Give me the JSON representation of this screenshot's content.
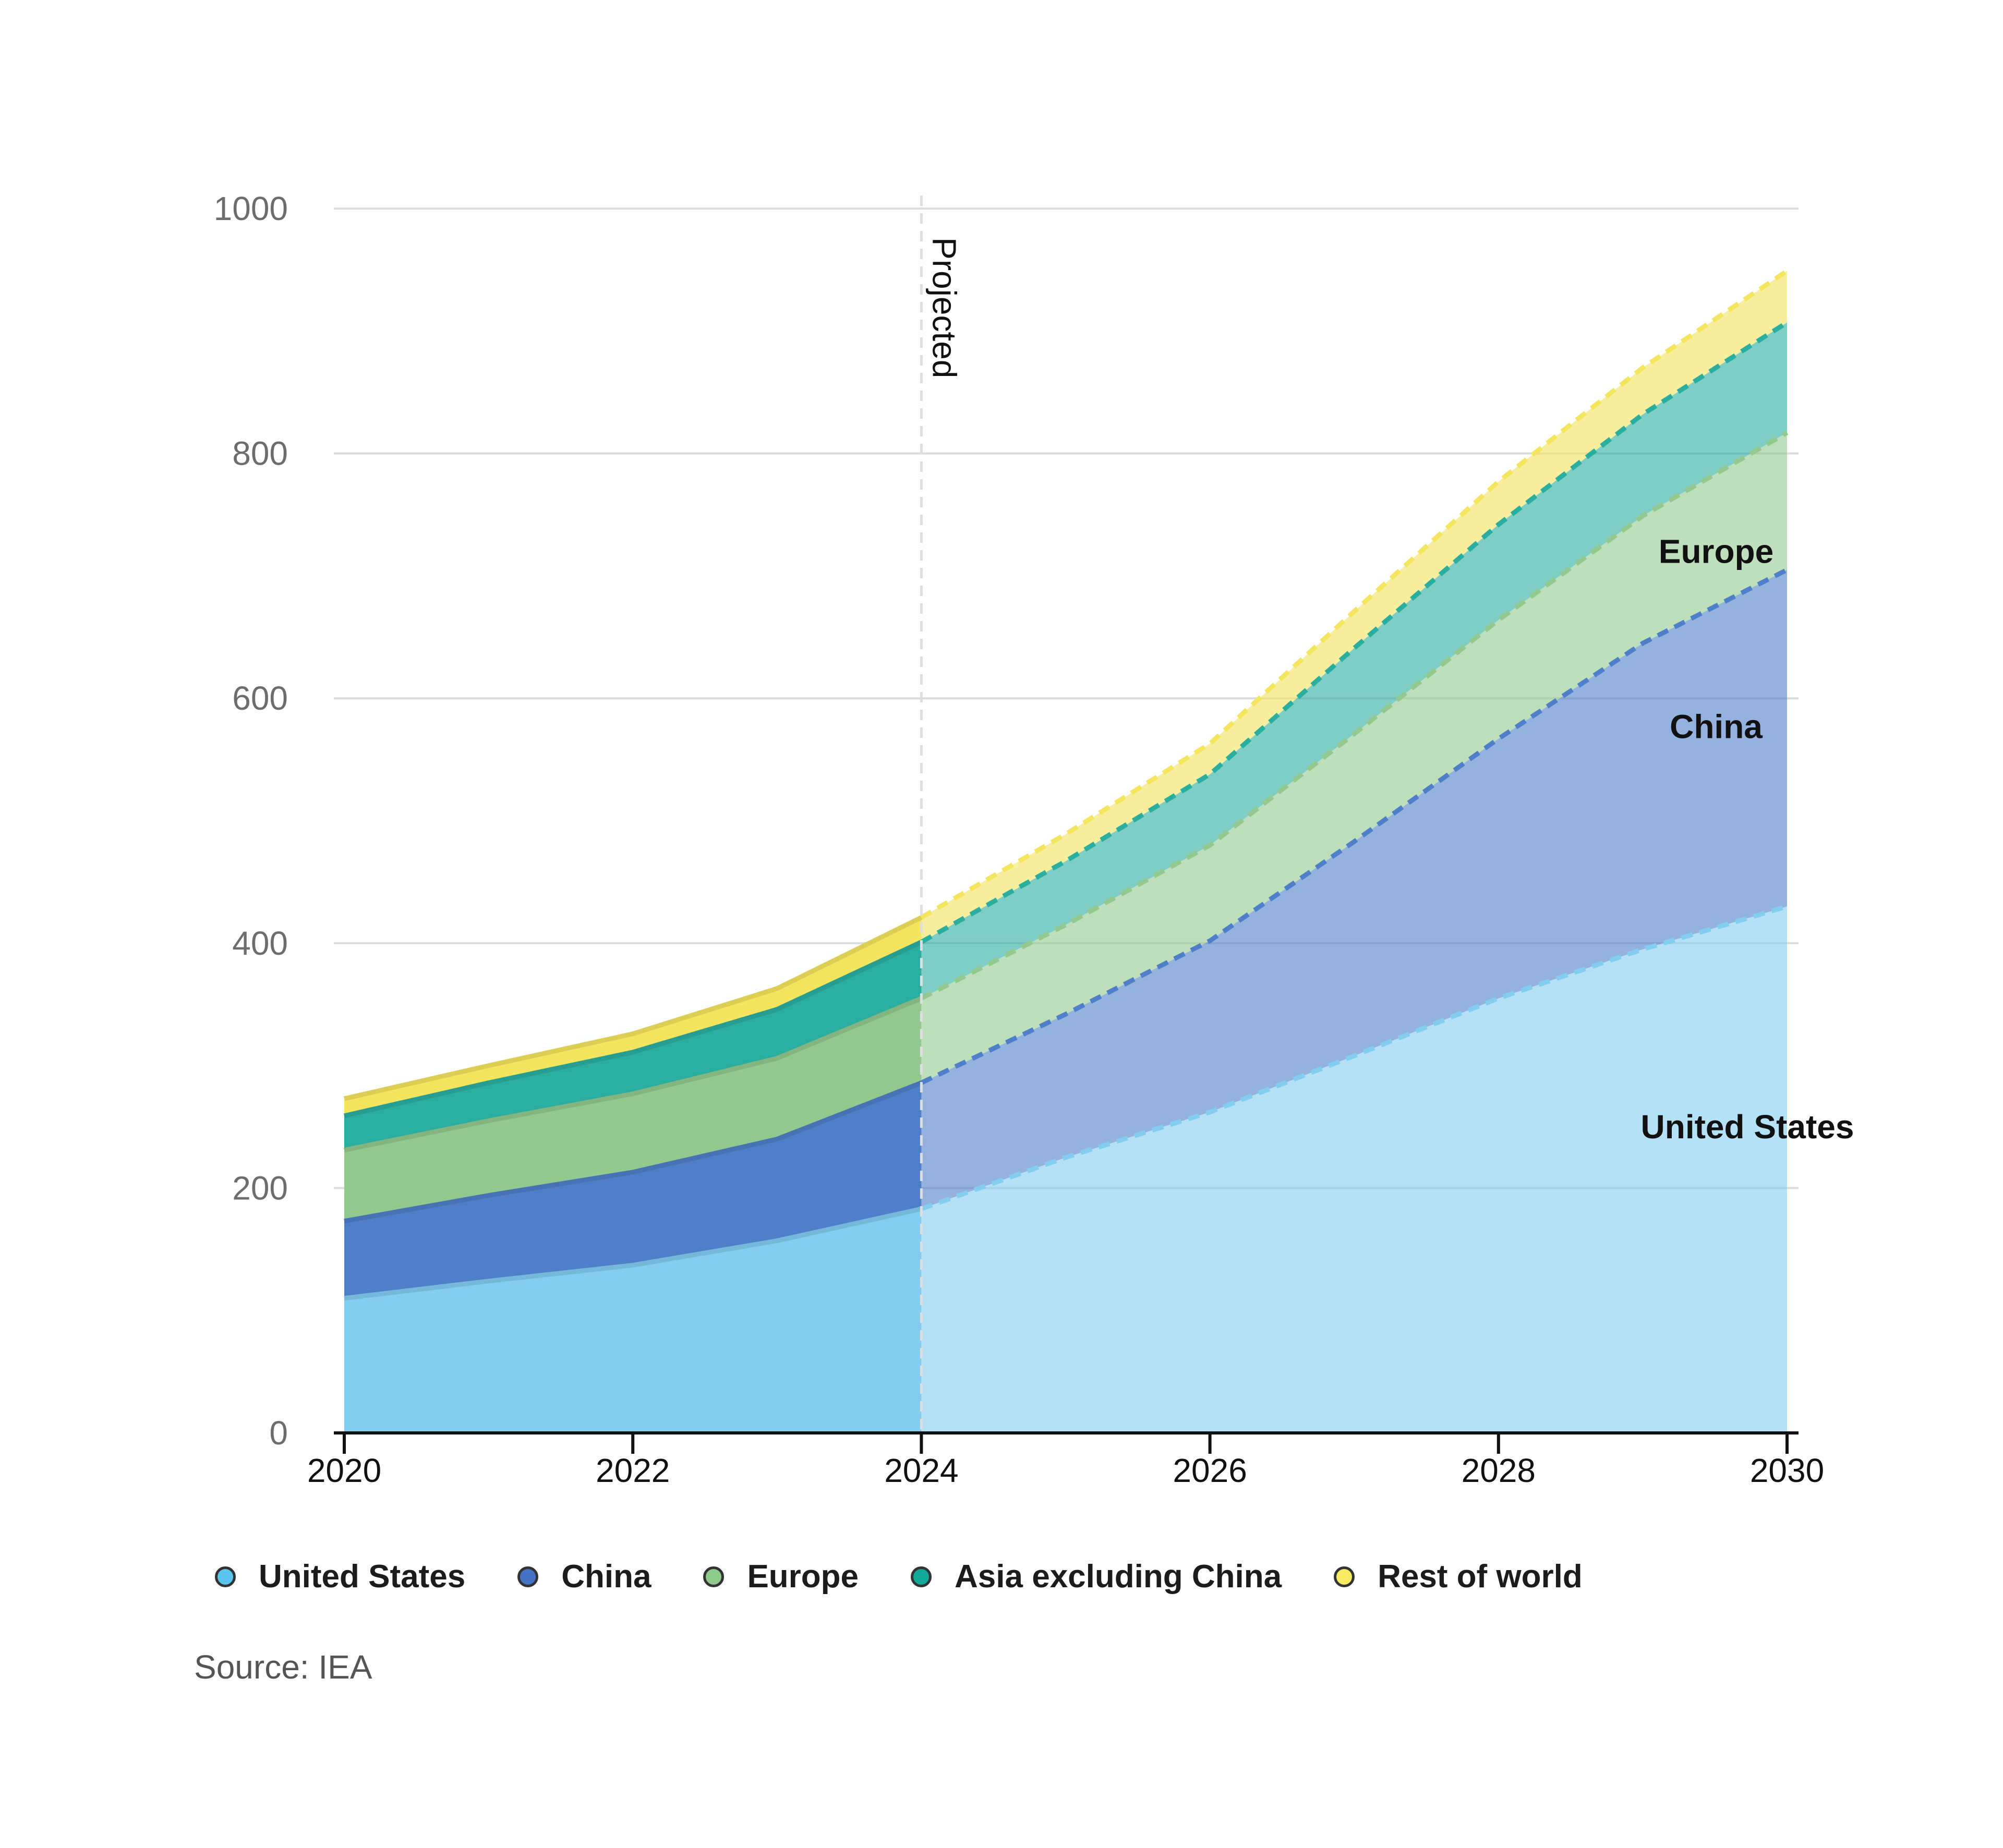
{
  "chart_data": {
    "type": "area",
    "stacked": true,
    "x": [
      2020,
      2021,
      2022,
      2023,
      2024,
      2025,
      2026,
      2027,
      2028,
      2029,
      2030
    ],
    "projected_from": 2024,
    "projected_label": "Projected",
    "series": [
      {
        "name": "United States",
        "color": "#82cdf0",
        "values": [
          110,
          124,
          137,
          157,
          183,
          225,
          262,
          308,
          355,
          395,
          430
        ]
      },
      {
        "name": "China",
        "color": "#4f7fc8",
        "values": [
          63,
          70,
          76,
          83,
          103,
          117,
          140,
          175,
          212,
          250,
          275
        ]
      },
      {
        "name": "Europe",
        "color": "#93c98e",
        "values": [
          58,
          61,
          64,
          66,
          69,
          73,
          78,
          88,
          97,
          104,
          112
        ]
      },
      {
        "name": "Asia excluding China",
        "color": "#2aaea0",
        "values": [
          28,
          31,
          34,
          40,
          46,
          52,
          58,
          70,
          78,
          83,
          90
        ]
      },
      {
        "name": "Rest of world",
        "color": "#f4e55e",
        "values": [
          14,
          14,
          15,
          17,
          20,
          22,
          25,
          30,
          35,
          38,
          42
        ]
      }
    ],
    "inline_labels": [
      "Europe",
      "China",
      "United States"
    ],
    "xticks": [
      2020,
      2022,
      2024,
      2026,
      2028,
      2030
    ],
    "yticks": [
      0,
      200,
      400,
      600,
      800,
      1000
    ],
    "ylim": [
      0,
      1000
    ],
    "xlim": [
      2020,
      2030
    ],
    "grid": true,
    "legend_position": "bottom"
  },
  "legend": [
    {
      "label": "United States",
      "color": "#5ac3ee"
    },
    {
      "label": "China",
      "color": "#4472c4"
    },
    {
      "label": "Europe",
      "color": "#8cc98a"
    },
    {
      "label": "Asia excluding China",
      "color": "#14a898"
    },
    {
      "label": "Rest of world",
      "color": "#f6eb63"
    }
  ],
  "source": "Source: IEA"
}
